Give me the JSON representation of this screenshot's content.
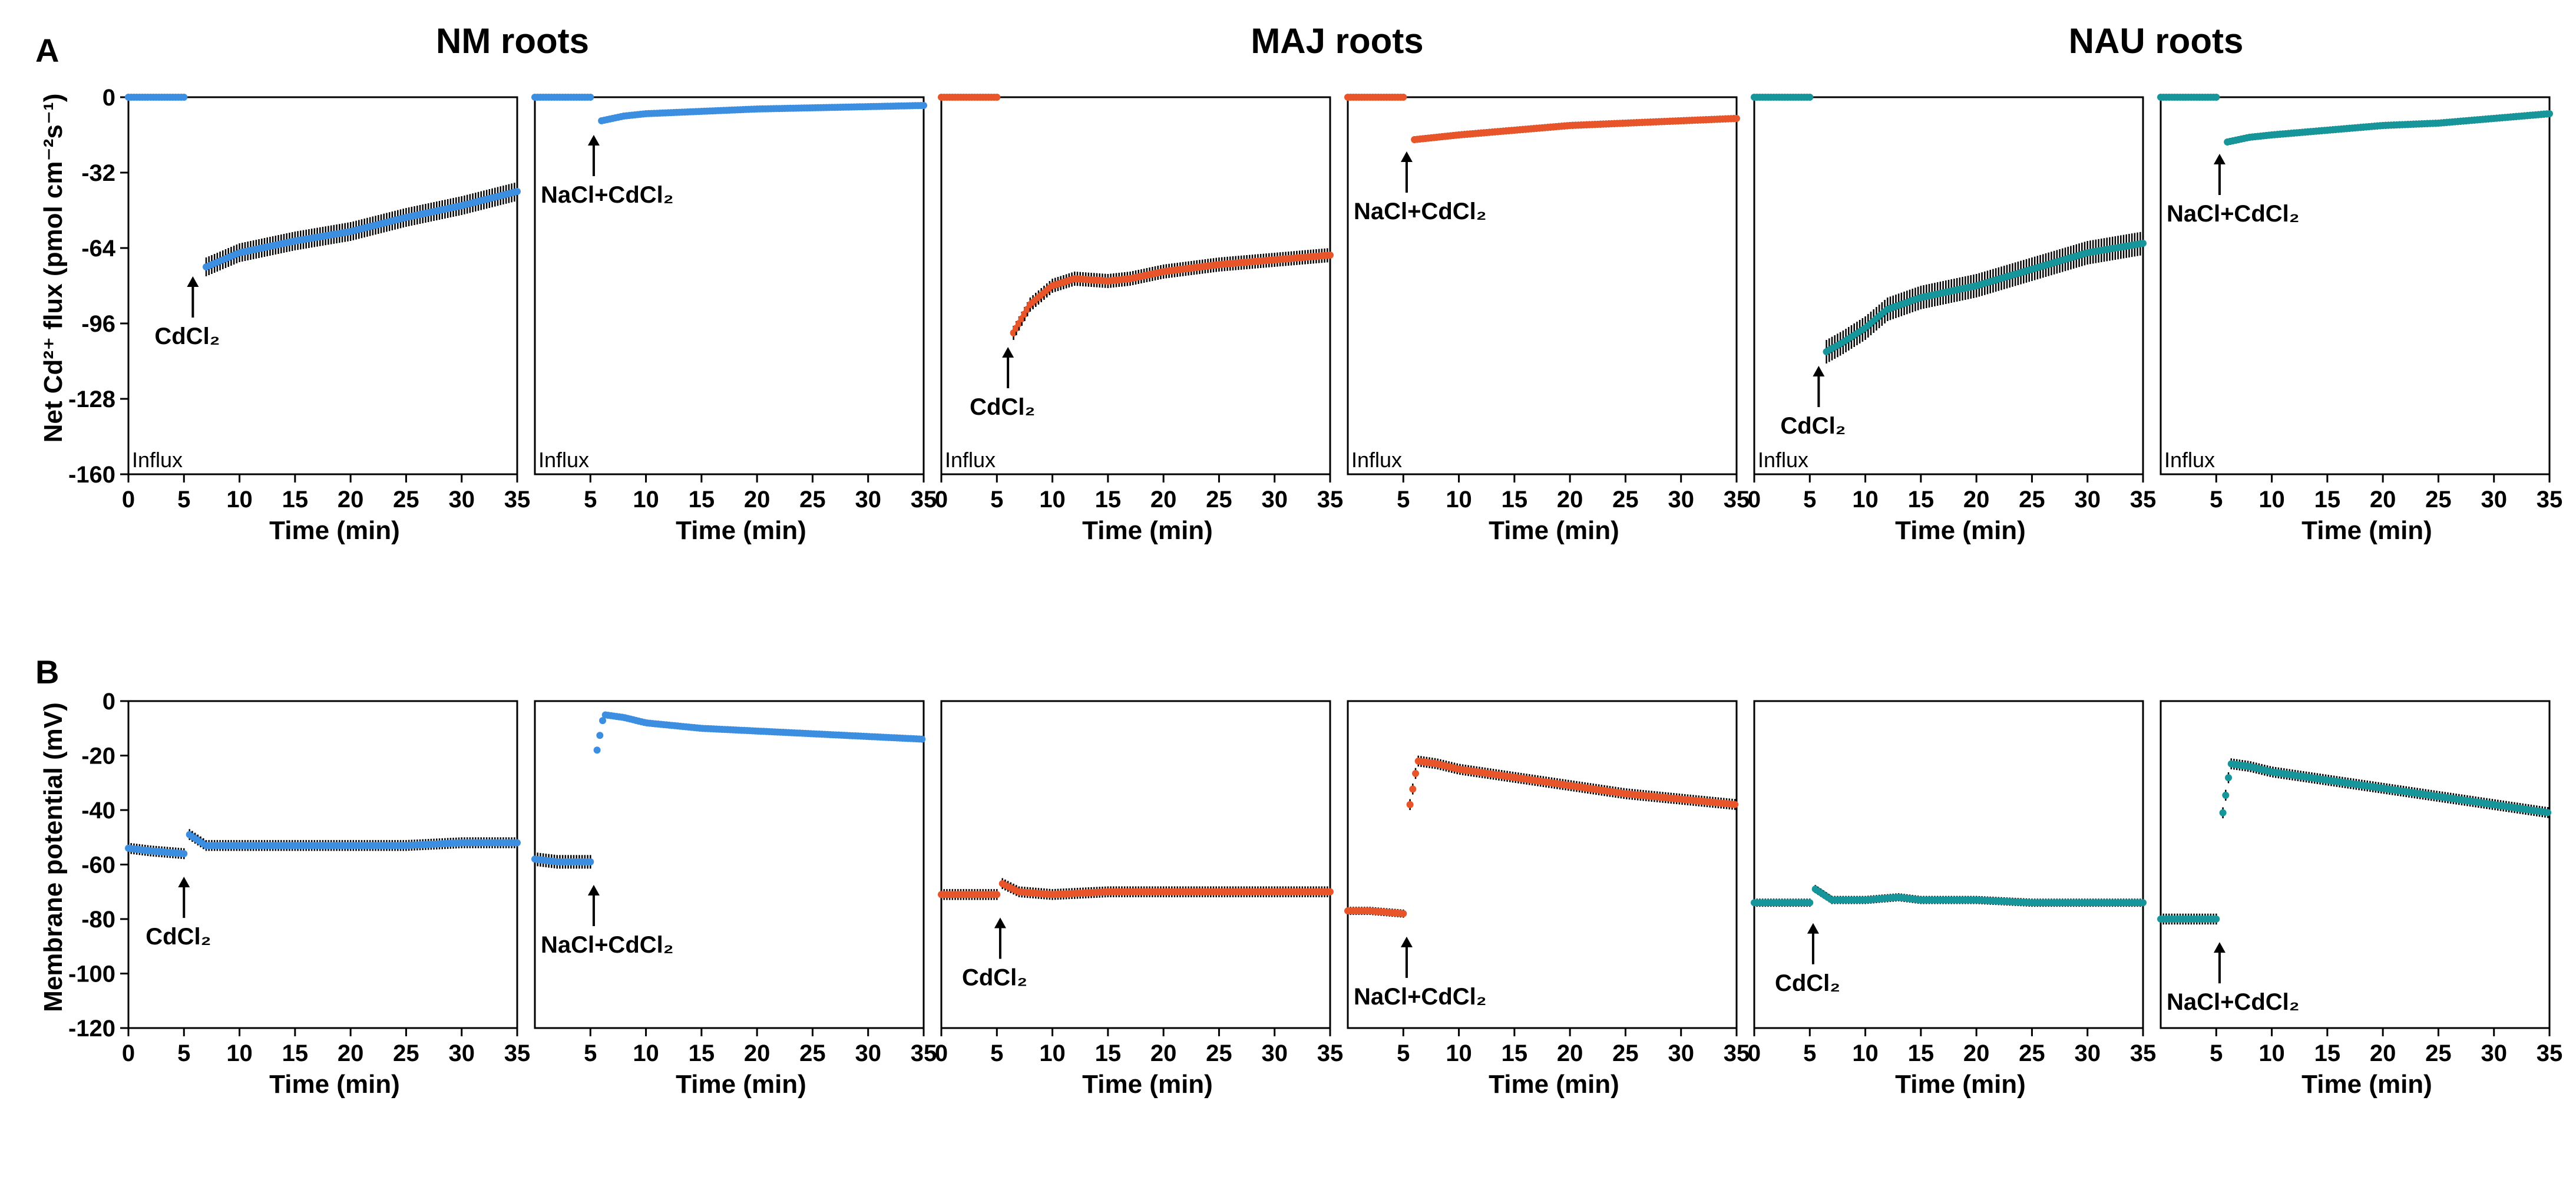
{
  "figure": {
    "group_titles": [
      "NM roots",
      "MAJ roots",
      "NAU roots"
    ],
    "panel_letters": [
      "A",
      "B"
    ],
    "y_label_A": "Net Cd²⁺ flux (pmol cm⁻²s⁻¹)",
    "y_label_B": "Membrane potential (mV)",
    "x_label": "Time (min)",
    "influx_label": "Influx",
    "treatments": [
      "CdCl₂",
      "NaCl+CdCl₂"
    ]
  },
  "colors": {
    "NM": "#3c8ee0",
    "MAJ": "#e8552a",
    "NAU": "#16959a",
    "error_bar": "#000000"
  },
  "chart_data": [
    {
      "type": "scatter",
      "row": "A",
      "group": "NM roots",
      "treatment": "CdCl₂",
      "title": "NM roots",
      "xlabel": "Time (min)",
      "ylabel": "Net Cd²⁺ flux (pmol cm⁻²s⁻¹)",
      "xlim": [
        0,
        35
      ],
      "ylim": [
        -160,
        0
      ],
      "x_ticks": [
        0,
        5,
        10,
        15,
        20,
        25,
        30,
        35
      ],
      "y_ticks": [
        0,
        -32,
        -64,
        -96,
        -128,
        -160
      ],
      "color": "#3c8ee0",
      "influx_label": "Influx",
      "annotation": {
        "text": "CdCl₂",
        "x": 5.8,
        "y": -72
      },
      "series": [
        {
          "name": "pre",
          "x": [
            0,
            5
          ],
          "y": [
            0,
            0
          ],
          "err": 0.5
        },
        {
          "name": "post",
          "x": [
            7,
            10,
            15,
            20,
            25,
            30,
            35
          ],
          "y": [
            -72,
            -66,
            -61,
            -57,
            -51,
            -46,
            -40
          ],
          "err": 4
        }
      ]
    },
    {
      "type": "scatter",
      "row": "A",
      "group": "NM roots",
      "treatment": "NaCl+CdCl₂",
      "xlabel": "Time (min)",
      "xlim": [
        0,
        35
      ],
      "ylim": [
        -160,
        0
      ],
      "x_ticks": [
        5,
        10,
        15,
        20,
        25,
        30,
        35
      ],
      "color": "#3c8ee0",
      "influx_label": "Influx",
      "annotation": {
        "text": "NaCl+CdCl₂",
        "x": 5.3,
        "y": -12
      },
      "series": [
        {
          "name": "pre",
          "x": [
            0,
            5
          ],
          "y": [
            0,
            0
          ],
          "err": 0.5
        },
        {
          "name": "post",
          "x": [
            6,
            8,
            10,
            15,
            20,
            25,
            30,
            35
          ],
          "y": [
            -10,
            -8,
            -7,
            -6,
            -5,
            -4.5,
            -4,
            -3.5
          ],
          "err": 1
        }
      ]
    },
    {
      "type": "scatter",
      "row": "A",
      "group": "MAJ roots",
      "treatment": "CdCl₂",
      "title": "MAJ roots",
      "xlabel": "Time (min)",
      "xlim": [
        0,
        35
      ],
      "ylim": [
        -160,
        0
      ],
      "x_ticks": [
        0,
        5,
        10,
        15,
        20,
        25,
        30,
        35
      ],
      "color": "#e8552a",
      "influx_label": "Influx",
      "annotation": {
        "text": "CdCl₂",
        "x": 6,
        "y": -102
      },
      "series": [
        {
          "name": "pre",
          "x": [
            0,
            5
          ],
          "y": [
            0,
            0
          ],
          "err": 0.5
        },
        {
          "name": "post",
          "x": [
            6.5,
            8,
            10,
            12,
            15,
            17,
            20,
            25,
            30,
            35
          ],
          "y": [
            -100,
            -88,
            -80,
            -77,
            -78,
            -77,
            -74,
            -71,
            -69,
            -67
          ],
          "err": 3
        }
      ]
    },
    {
      "type": "scatter",
      "row": "A",
      "group": "MAJ roots",
      "treatment": "NaCl+CdCl₂",
      "xlabel": "Time (min)",
      "xlim": [
        0,
        35
      ],
      "ylim": [
        -160,
        0
      ],
      "x_ticks": [
        5,
        10,
        15,
        20,
        25,
        30,
        35
      ],
      "color": "#e8552a",
      "influx_label": "Influx",
      "annotation": {
        "text": "NaCl+CdCl₂",
        "x": 5.3,
        "y": -19
      },
      "series": [
        {
          "name": "pre",
          "x": [
            0,
            5
          ],
          "y": [
            0,
            0
          ],
          "err": 0.5
        },
        {
          "name": "post",
          "x": [
            6,
            8,
            10,
            15,
            20,
            25,
            30,
            35
          ],
          "y": [
            -18,
            -17,
            -16,
            -14,
            -12,
            -11,
            -10,
            -9
          ],
          "err": 1.5
        }
      ]
    },
    {
      "type": "scatter",
      "row": "A",
      "group": "NAU roots",
      "treatment": "CdCl₂",
      "title": "NAU roots",
      "xlabel": "Time (min)",
      "xlim": [
        0,
        35
      ],
      "ylim": [
        -160,
        0
      ],
      "x_ticks": [
        0,
        5,
        10,
        15,
        20,
        25,
        30,
        35
      ],
      "color": "#16959a",
      "influx_label": "Influx",
      "annotation": {
        "text": "CdCl₂",
        "x": 5.8,
        "y": -110
      },
      "series": [
        {
          "name": "pre",
          "x": [
            0,
            5
          ],
          "y": [
            0,
            0
          ],
          "err": 0.5
        },
        {
          "name": "post",
          "x": [
            6.5,
            8,
            10,
            12,
            15,
            20,
            25,
            30,
            35
          ],
          "y": [
            -108,
            -104,
            -98,
            -90,
            -85,
            -80,
            -73,
            -66,
            -62
          ],
          "err": 5
        }
      ]
    },
    {
      "type": "scatter",
      "row": "A",
      "group": "NAU roots",
      "treatment": "NaCl+CdCl₂",
      "xlabel": "Time (min)",
      "xlim": [
        0,
        35
      ],
      "ylim": [
        -160,
        0
      ],
      "x_ticks": [
        5,
        10,
        15,
        20,
        25,
        30,
        35
      ],
      "color": "#16959a",
      "influx_label": "Influx",
      "annotation": {
        "text": "NaCl+CdCl₂",
        "x": 5.3,
        "y": -20
      },
      "series": [
        {
          "name": "pre",
          "x": [
            0,
            5
          ],
          "y": [
            0,
            0
          ],
          "err": 0.5
        },
        {
          "name": "post",
          "x": [
            6,
            8,
            10,
            15,
            20,
            25,
            30,
            35
          ],
          "y": [
            -19,
            -17,
            -16,
            -14,
            -12,
            -11,
            -9,
            -7
          ],
          "err": 1.5
        }
      ]
    },
    {
      "type": "scatter",
      "row": "B",
      "group": "NM roots",
      "treatment": "CdCl₂",
      "xlabel": "Time (min)",
      "ylabel": "Membrane potential (mV)",
      "xlim": [
        0,
        35
      ],
      "ylim": [
        -120,
        0
      ],
      "x_ticks": [
        0,
        5,
        10,
        15,
        20,
        25,
        30,
        35
      ],
      "y_ticks": [
        0,
        -20,
        -40,
        -60,
        -80,
        -100,
        -120
      ],
      "color": "#3c8ee0",
      "annotation": {
        "text": "CdCl₂",
        "x": 5,
        "y": -61
      },
      "series": [
        {
          "name": "pre",
          "x": [
            0,
            2,
            5
          ],
          "y": [
            -54,
            -55,
            -56
          ],
          "err": 2
        },
        {
          "name": "post",
          "x": [
            5.5,
            7,
            10,
            15,
            20,
            25,
            30,
            35
          ],
          "y": [
            -49,
            -53,
            -53,
            -53,
            -53,
            -53,
            -52,
            -52
          ],
          "err": 2
        }
      ]
    },
    {
      "type": "scatter",
      "row": "B",
      "group": "NM roots",
      "treatment": "NaCl+CdCl₂",
      "xlabel": "Time (min)",
      "xlim": [
        0,
        35
      ],
      "ylim": [
        -120,
        0
      ],
      "x_ticks": [
        5,
        10,
        15,
        20,
        25,
        30,
        35
      ],
      "color": "#3c8ee0",
      "annotation": {
        "text": "NaCl+CdCl₂",
        "x": 5.3,
        "y": -64
      },
      "series": [
        {
          "name": "pre",
          "x": [
            0,
            2,
            5
          ],
          "y": [
            -58,
            -59,
            -59
          ],
          "err": 2.5
        },
        {
          "name": "post",
          "x": [
            5.6,
            6.2,
            8,
            10,
            15,
            20,
            25,
            30,
            35
          ],
          "y": [
            -18,
            -5,
            -6,
            -8,
            -10,
            -11,
            -12,
            -13,
            -14
          ],
          "err": 1
        }
      ]
    },
    {
      "type": "scatter",
      "row": "B",
      "group": "MAJ roots",
      "treatment": "CdCl₂",
      "xlabel": "Time (min)",
      "xlim": [
        0,
        35
      ],
      "ylim": [
        -120,
        0
      ],
      "x_ticks": [
        0,
        5,
        10,
        15,
        20,
        25,
        30,
        35
      ],
      "color": "#e8552a",
      "annotation": {
        "text": "CdCl₂",
        "x": 5.3,
        "y": -76
      },
      "series": [
        {
          "name": "pre",
          "x": [
            0,
            2,
            5
          ],
          "y": [
            -71,
            -71,
            -71
          ],
          "err": 2
        },
        {
          "name": "post",
          "x": [
            5.5,
            7,
            10,
            15,
            20,
            25,
            30,
            35
          ],
          "y": [
            -67,
            -70,
            -71,
            -70,
            -70,
            -70,
            -70,
            -70
          ],
          "err": 2
        }
      ]
    },
    {
      "type": "scatter",
      "row": "B",
      "group": "MAJ roots",
      "treatment": "NaCl+CdCl₂",
      "xlabel": "Time (min)",
      "xlim": [
        0,
        35
      ],
      "ylim": [
        -120,
        0
      ],
      "x_ticks": [
        5,
        10,
        15,
        20,
        25,
        30,
        35
      ],
      "color": "#e8552a",
      "annotation": {
        "text": "NaCl+CdCl₂",
        "x": 5.3,
        "y": -83
      },
      "series": [
        {
          "name": "pre",
          "x": [
            0,
            2,
            5
          ],
          "y": [
            -77,
            -77,
            -78
          ],
          "err": 1.5
        },
        {
          "name": "post",
          "x": [
            5.6,
            6.3,
            8,
            10,
            15,
            20,
            25,
            30,
            35
          ],
          "y": [
            -38,
            -22,
            -23,
            -25,
            -28,
            -31,
            -34,
            -36,
            -38
          ],
          "err": 2
        }
      ]
    },
    {
      "type": "scatter",
      "row": "B",
      "group": "NAU roots",
      "treatment": "CdCl₂",
      "xlabel": "Time (min)",
      "xlim": [
        0,
        35
      ],
      "ylim": [
        -120,
        0
      ],
      "x_ticks": [
        0,
        5,
        10,
        15,
        20,
        25,
        30,
        35
      ],
      "color": "#16959a",
      "annotation": {
        "text": "CdCl₂",
        "x": 5.3,
        "y": -78
      },
      "series": [
        {
          "name": "pre",
          "x": [
            0,
            2,
            5
          ],
          "y": [
            -74,
            -74,
            -74
          ],
          "err": 1.5
        },
        {
          "name": "post",
          "x": [
            5.5,
            7,
            10,
            13,
            15,
            20,
            25,
            30,
            35
          ],
          "y": [
            -69,
            -73,
            -73,
            -72,
            -73,
            -73,
            -74,
            -74,
            -74
          ],
          "err": 1.5
        }
      ]
    },
    {
      "type": "scatter",
      "row": "B",
      "group": "NAU roots",
      "treatment": "NaCl+CdCl₂",
      "xlabel": "Time (min)",
      "xlim": [
        0,
        35
      ],
      "ylim": [
        -120,
        0
      ],
      "x_ticks": [
        5,
        10,
        15,
        20,
        25,
        30,
        35
      ],
      "color": "#16959a",
      "annotation": {
        "text": "NaCl+CdCl₂",
        "x": 5.3,
        "y": -85
      },
      "series": [
        {
          "name": "pre",
          "x": [
            0,
            2,
            5
          ],
          "y": [
            -80,
            -80,
            -80
          ],
          "err": 2
        },
        {
          "name": "post",
          "x": [
            5.6,
            6.3,
            8,
            10,
            15,
            20,
            25,
            30,
            35
          ],
          "y": [
            -41,
            -23,
            -24,
            -26,
            -29,
            -32,
            -35,
            -38,
            -41
          ],
          "err": 2
        }
      ]
    }
  ]
}
